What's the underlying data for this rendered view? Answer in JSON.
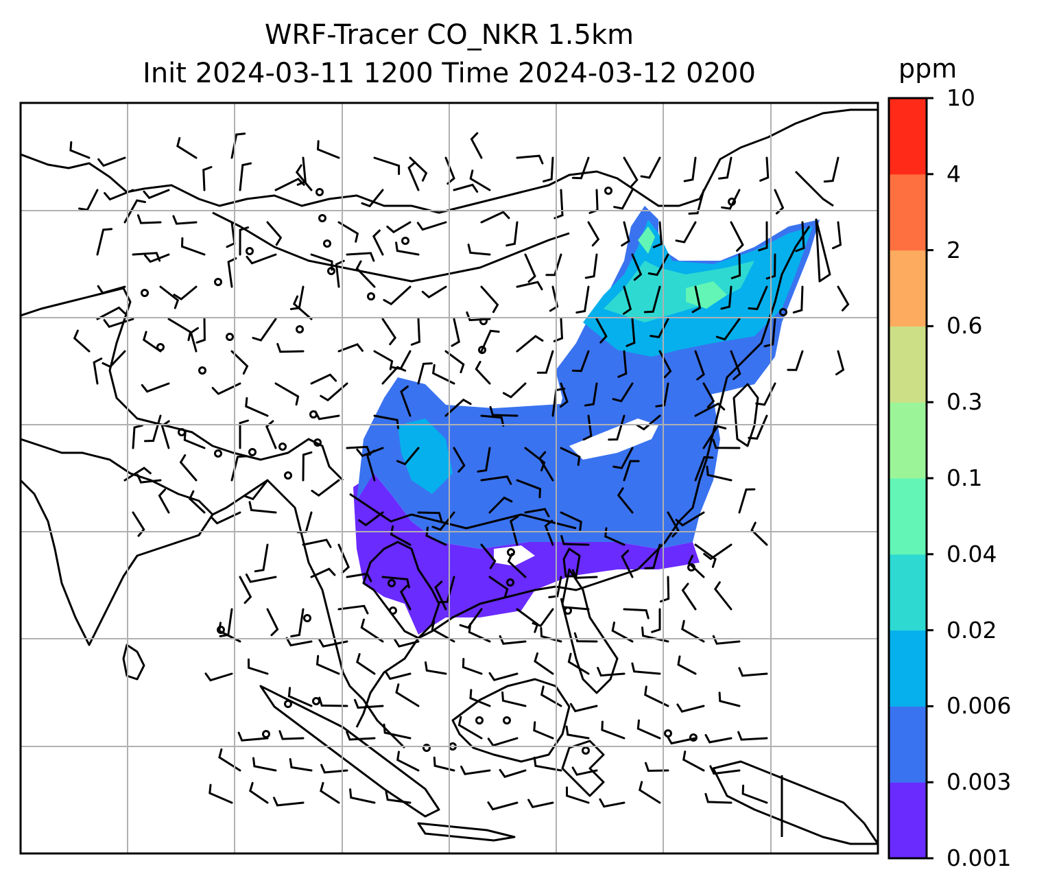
{
  "title": {
    "line1": "WRF-Tracer CO_NKR 1.5km",
    "line2": "Init 2024-03-11 1200 Time 2024-03-12 0200"
  },
  "colorbar": {
    "unit": "ppm",
    "levels": [
      "0.001",
      "0.003",
      "0.006",
      "0.02",
      "0.04",
      "0.1",
      "0.3",
      "0.6",
      "2",
      "4",
      "10"
    ],
    "colors": [
      "#6a2bff",
      "#3a73f0",
      "#06b0ec",
      "#2ed9d2",
      "#63f5b5",
      "#9bf598",
      "#cddf86",
      "#fdab5e",
      "#ff7040",
      "#ff2a17"
    ]
  },
  "map": {
    "land_outline_color": "#000000",
    "gridline_color": "#b0b0b0",
    "wind_barb_color": "#000000",
    "overlays": [
      "coastlines",
      "wind-barbs",
      "gridlines",
      "co-tracer-fill"
    ]
  }
}
